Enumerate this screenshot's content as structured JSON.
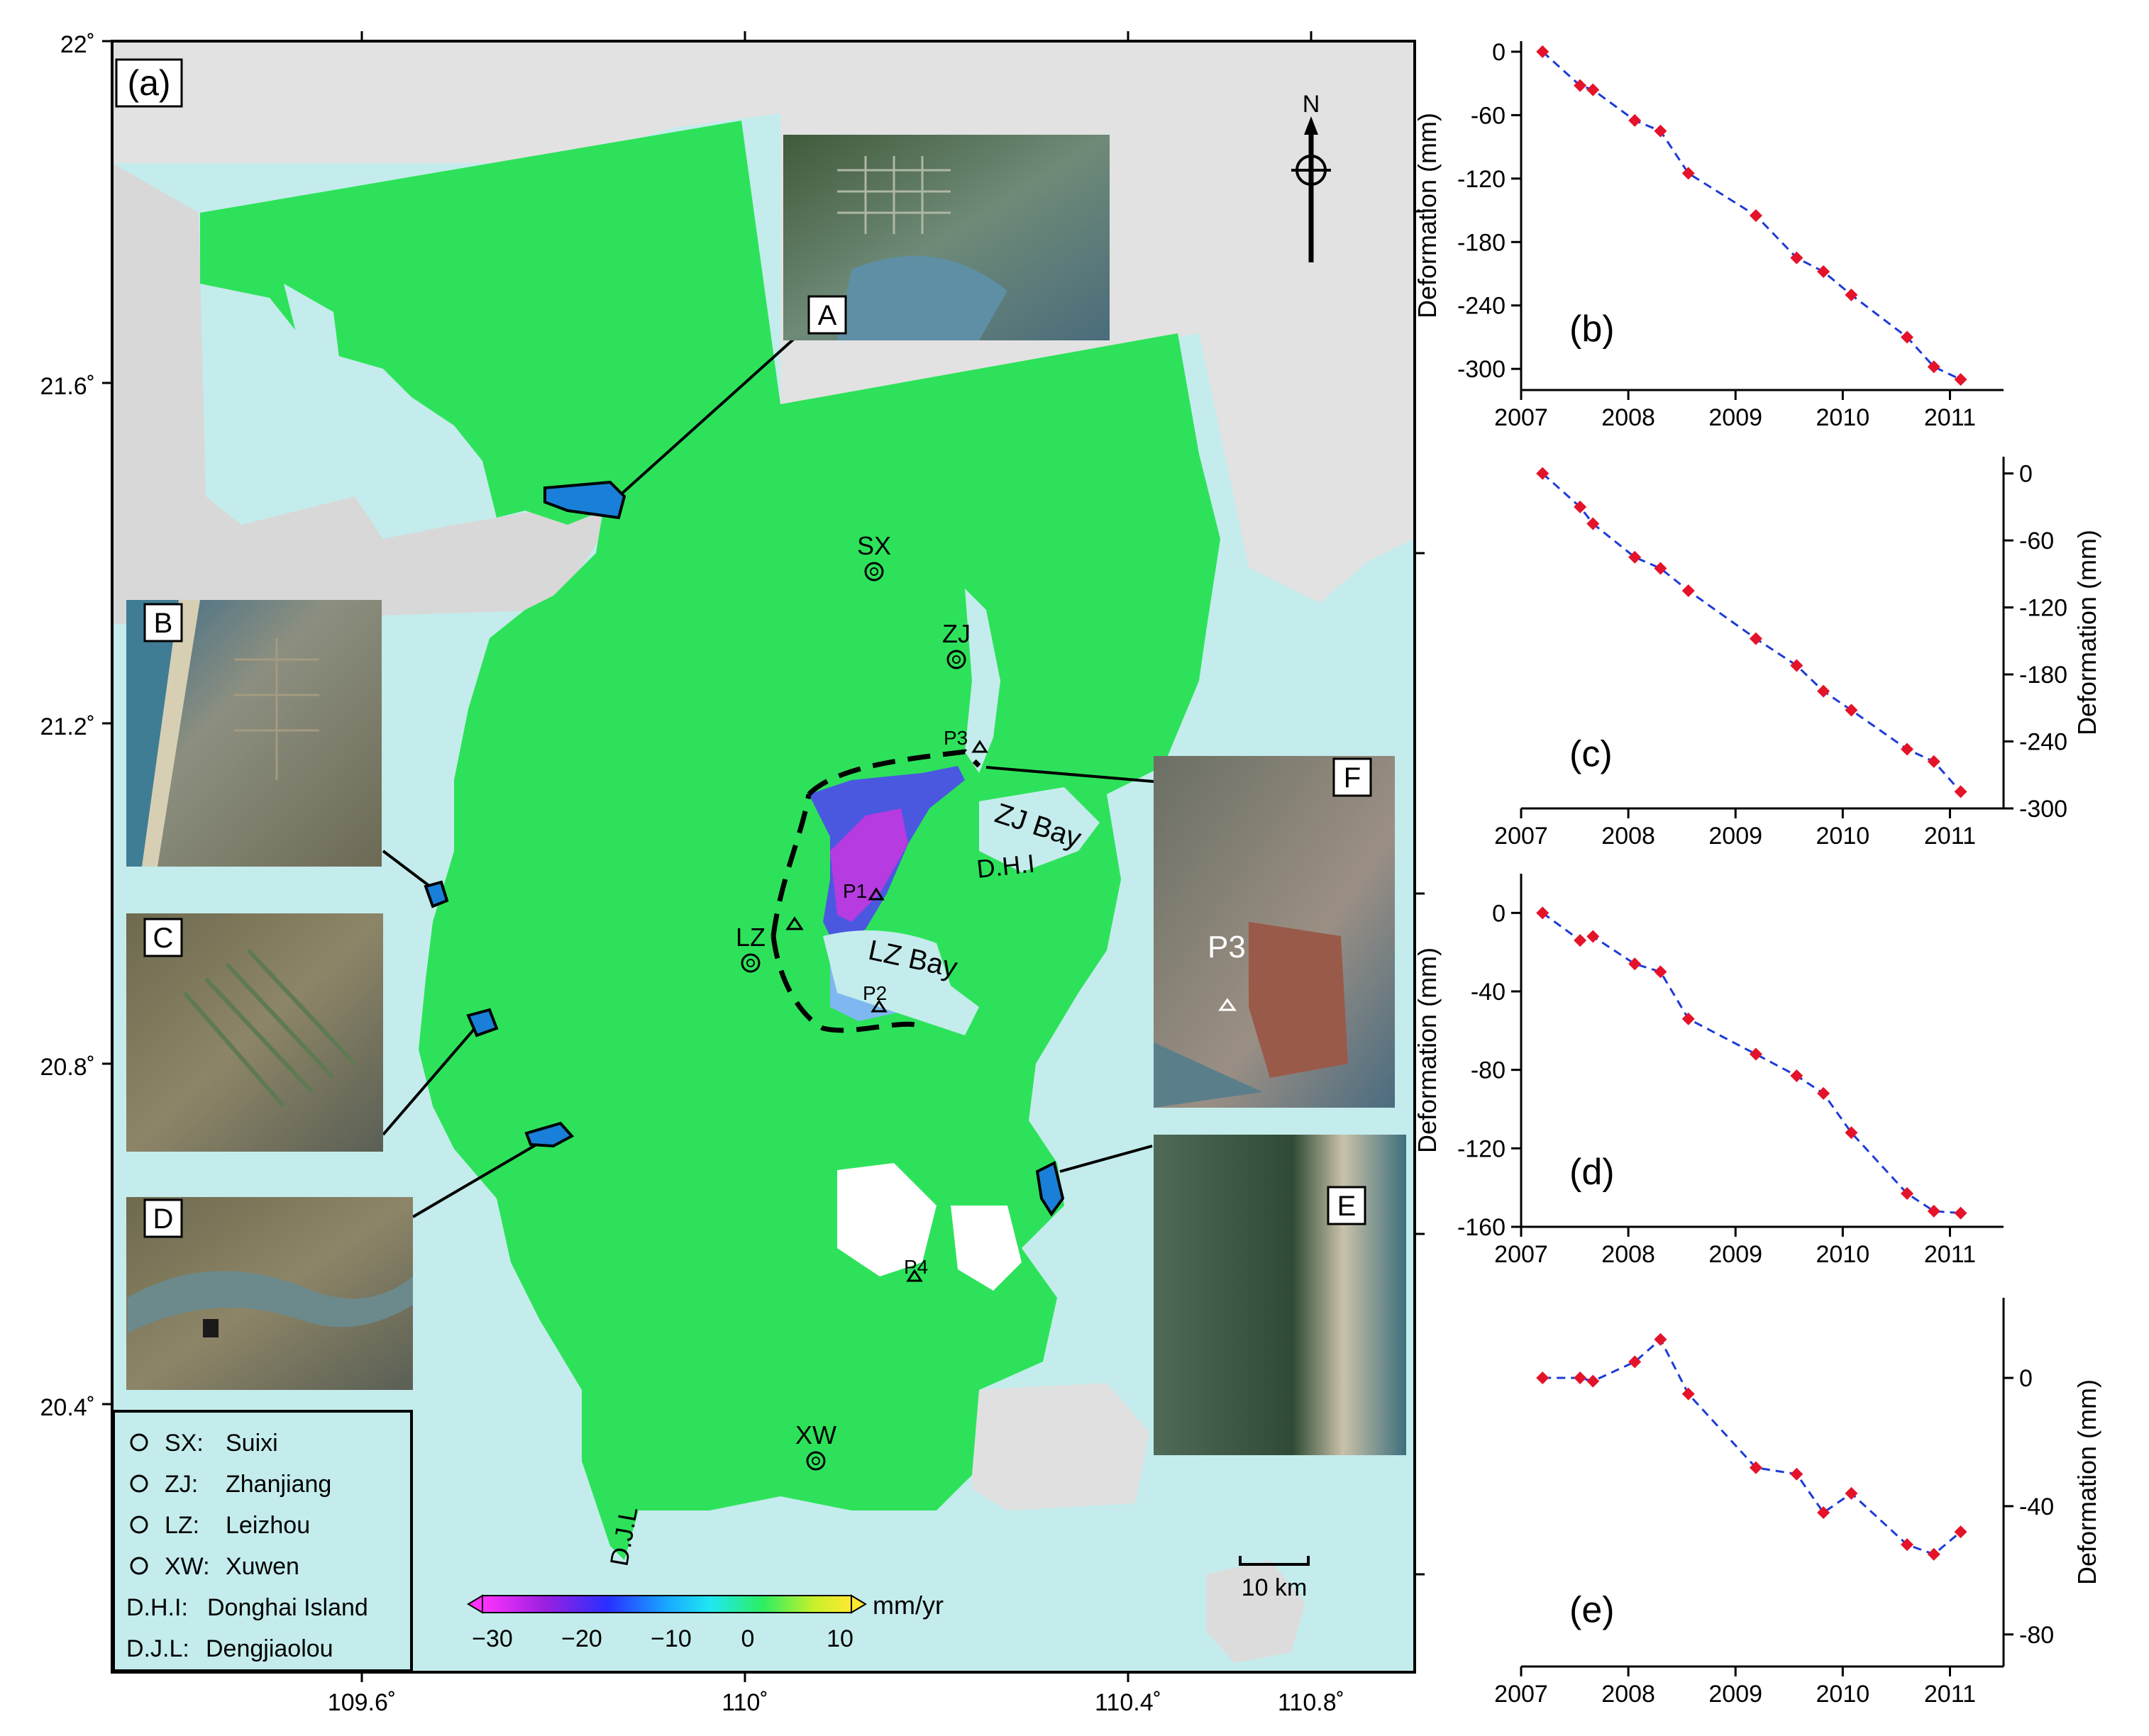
{
  "panel_a": {
    "label": "(a)",
    "lat_ticks": [
      "22˚",
      "21.6˚",
      "21.2˚",
      "20.8˚",
      "20.4˚"
    ],
    "lon_ticks": [
      "109.6˚",
      "110˚",
      "110.4˚",
      "110.8˚"
    ],
    "north": "N",
    "scale_bar": "10 km",
    "places": {
      "sx": "SX",
      "zj": "ZJ",
      "lz": "LZ",
      "xw": "XW",
      "djl": "D.J.L",
      "dhi": "D.H.I",
      "zj_bay": "ZJ Bay",
      "lz_bay": "LZ Bay"
    },
    "points": {
      "p1": "P1",
      "p2": "P2",
      "p3": "P3",
      "p4": "P4"
    },
    "insets": {
      "a": "A",
      "b": "B",
      "c": "C",
      "d": "D",
      "e": "E",
      "f": "F",
      "f_p3": "P3"
    },
    "legend": [
      {
        "abbr": "SX:",
        "name": "Suixi"
      },
      {
        "abbr": "ZJ:",
        "name": "Zhanjiang"
      },
      {
        "abbr": "LZ:",
        "name": "Leizhou"
      },
      {
        "abbr": "XW:",
        "name": "Xuwen"
      },
      {
        "abbr": "D.H.I:",
        "name": "Donghai Island"
      },
      {
        "abbr": "D.J.L:",
        "name": "Dengjiaolou"
      }
    ],
    "colorbar": {
      "unit": "mm/yr",
      "ticks": [
        "−30",
        "−20",
        "−10",
        "0",
        "10"
      ]
    },
    "colors": {
      "sea": "#c4ecec",
      "land": "#e2e2e2",
      "deform": "#2de25a",
      "frame": "#000000"
    }
  },
  "chart_data": [
    {
      "type": "line",
      "label": "(b)",
      "ylabel": "Deformation (mm)",
      "xlabel": "",
      "xlim": [
        2007,
        2011.5
      ],
      "ylim": [
        -320,
        10
      ],
      "xticks": [
        "2007",
        "2008",
        "2009",
        "2010",
        "2011"
      ],
      "yticks": [
        "0",
        "-60",
        "-120",
        "-180",
        "-240",
        "-300"
      ],
      "x": [
        2007.2,
        2007.55,
        2007.67,
        2008.06,
        2008.3,
        2008.56,
        2009.19,
        2009.57,
        2009.82,
        2010.08,
        2010.6,
        2010.85,
        2011.1
      ],
      "values": [
        0,
        -32,
        -36,
        -65,
        -75,
        -115,
        -155,
        -195,
        -208,
        -230,
        -270,
        -298,
        -310
      ],
      "line_color": "#1e3bd6",
      "marker_color": "#e4132a"
    },
    {
      "type": "line",
      "label": "(c)",
      "ylabel": "Deformation (mm)",
      "xlabel": "",
      "xlim": [
        2007,
        2011.5
      ],
      "ylim": [
        -300,
        15
      ],
      "xticks": [
        "2007",
        "2008",
        "2009",
        "2010",
        "2011"
      ],
      "yticks": [
        "0",
        "-60",
        "-120",
        "-180",
        "-240",
        "-300"
      ],
      "x": [
        2007.2,
        2007.55,
        2007.67,
        2008.06,
        2008.3,
        2008.56,
        2009.19,
        2009.57,
        2009.82,
        2010.08,
        2010.6,
        2010.85,
        2011.1
      ],
      "values": [
        0,
        -30,
        -45,
        -75,
        -85,
        -105,
        -148,
        -172,
        -195,
        -212,
        -247,
        -258,
        -285
      ],
      "line_color": "#1e3bd6",
      "marker_color": "#e4132a"
    },
    {
      "type": "line",
      "label": "(d)",
      "ylabel": "Deformation (mm)",
      "xlabel": "",
      "xlim": [
        2007,
        2011.5
      ],
      "ylim": [
        -160,
        20
      ],
      "xticks": [
        "2007",
        "2008",
        "2009",
        "2010",
        "2011"
      ],
      "yticks": [
        "0",
        "-40",
        "-80",
        "-120",
        "-160"
      ],
      "x": [
        2007.2,
        2007.55,
        2007.67,
        2008.06,
        2008.3,
        2008.56,
        2009.19,
        2009.57,
        2009.82,
        2010.08,
        2010.6,
        2010.85,
        2011.1
      ],
      "values": [
        0,
        -14,
        -12,
        -26,
        -30,
        -54,
        -72,
        -83,
        -92,
        -112,
        -143,
        -152,
        -153
      ],
      "line_color": "#1e3bd6",
      "marker_color": "#e4132a"
    },
    {
      "type": "line",
      "label": "(e)",
      "ylabel": "Deformation (mm)",
      "xlabel": "",
      "xlim": [
        2007,
        2011.5
      ],
      "ylim": [
        -90,
        25
      ],
      "xticks": [
        "2007",
        "2008",
        "2009",
        "2010",
        "2011"
      ],
      "yticks": [
        "0",
        "-40",
        "-80"
      ],
      "x": [
        2007.2,
        2007.55,
        2007.67,
        2008.06,
        2008.3,
        2008.56,
        2009.19,
        2009.57,
        2009.82,
        2010.08,
        2010.6,
        2010.85,
        2011.1
      ],
      "values": [
        0,
        0,
        -1,
        5,
        12,
        -5,
        -28,
        -30,
        -42,
        -36,
        -52,
        -55,
        -48
      ],
      "line_color": "#1e3bd6",
      "marker_color": "#e4132a"
    }
  ]
}
